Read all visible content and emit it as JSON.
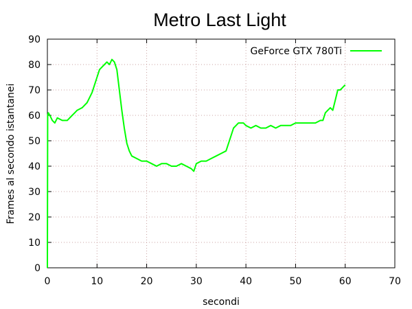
{
  "chart_data": {
    "type": "line",
    "title": "Metro Last Light",
    "xlabel": "secondi",
    "ylabel": "Frames al secondo istantanei",
    "xlim": [
      0,
      70
    ],
    "ylim": [
      0,
      90
    ],
    "xticks": [
      0,
      10,
      20,
      30,
      40,
      50,
      60,
      70
    ],
    "yticks": [
      0,
      10,
      20,
      30,
      40,
      50,
      60,
      70,
      80,
      90
    ],
    "grid": true,
    "legend_position": "top-right",
    "series": [
      {
        "name": "GeForce GTX 780Ti",
        "color": "#00ff00",
        "x": [
          0,
          0.05,
          0.2,
          0.5,
          1,
          1.5,
          2,
          3,
          4,
          5,
          5.5,
          6,
          7,
          8,
          9,
          9.5,
          10,
          10.5,
          11,
          11.5,
          12,
          12.5,
          13,
          13.5,
          14,
          14.5,
          15,
          15.5,
          16,
          16.5,
          17,
          18,
          19,
          20,
          21,
          22,
          23,
          24,
          25,
          26,
          27,
          28,
          29,
          29.5,
          30,
          31,
          32,
          33,
          34,
          35,
          36,
          37,
          37.5,
          38,
          38.5,
          39,
          39.5,
          40,
          41,
          42,
          43,
          44,
          45,
          46,
          47,
          48,
          49,
          50,
          51,
          52,
          53,
          54,
          55,
          55.5,
          56,
          56.5,
          57,
          57.5,
          58,
          58.5,
          59,
          59.5,
          60
        ],
        "y": [
          0,
          60,
          61,
          60,
          58,
          57,
          59,
          58,
          58,
          60,
          61,
          62,
          63,
          65,
          69,
          72,
          75,
          78,
          79,
          80,
          81,
          80,
          82,
          81,
          78,
          70,
          62,
          55,
          49,
          46,
          44,
          43,
          42,
          42,
          41,
          40,
          41,
          41,
          40,
          40,
          41,
          40,
          39,
          38,
          41,
          42,
          42,
          43,
          44,
          45,
          46,
          52,
          55,
          56,
          57,
          57,
          57,
          56,
          55,
          56,
          55,
          55,
          56,
          55,
          56,
          56,
          56,
          57,
          57,
          57,
          57,
          57,
          58,
          58,
          61,
          62,
          63,
          62,
          66,
          70,
          70,
          71,
          72
        ]
      }
    ]
  }
}
